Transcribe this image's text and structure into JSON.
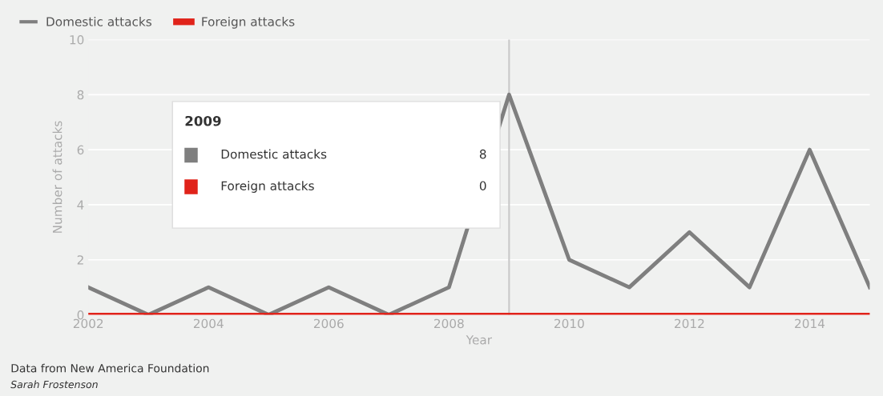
{
  "chart_data": {
    "type": "line",
    "xlabel": "Year",
    "ylabel": "Number of attacks",
    "x": [
      2002,
      2003,
      2004,
      2005,
      2006,
      2007,
      2008,
      2009,
      2010,
      2011,
      2012,
      2013,
      2014,
      2015
    ],
    "series": [
      {
        "name": "Domestic attacks",
        "color": "#7f7f7f",
        "values": [
          1,
          0,
          1,
          0,
          1,
          0,
          1,
          8,
          2,
          1,
          3,
          1,
          6,
          1
        ]
      },
      {
        "name": "Foreign attacks",
        "color": "#e0231a",
        "values": [
          0,
          0,
          0,
          0,
          0,
          0,
          0,
          0,
          0,
          0,
          0,
          0,
          0,
          0
        ]
      }
    ],
    "xlim": [
      2002,
      2015
    ],
    "xticks": [
      2002,
      2004,
      2006,
      2008,
      2010,
      2012,
      2014
    ],
    "ylim": [
      0,
      10
    ],
    "yticks": [
      0,
      2,
      4,
      6,
      8,
      10
    ],
    "grid": "y",
    "legend": "top left",
    "marker": "none",
    "line_style": "solid",
    "ref_lines": [
      {
        "axis": "x",
        "value": 2009,
        "color": "#c8c8c8"
      }
    ],
    "annotations": [
      "2009",
      "Domestic attacks",
      "8",
      "Foreign attacks",
      "0",
      "Data from New America Foundation",
      "Sarah Frostenson"
    ]
  }
}
